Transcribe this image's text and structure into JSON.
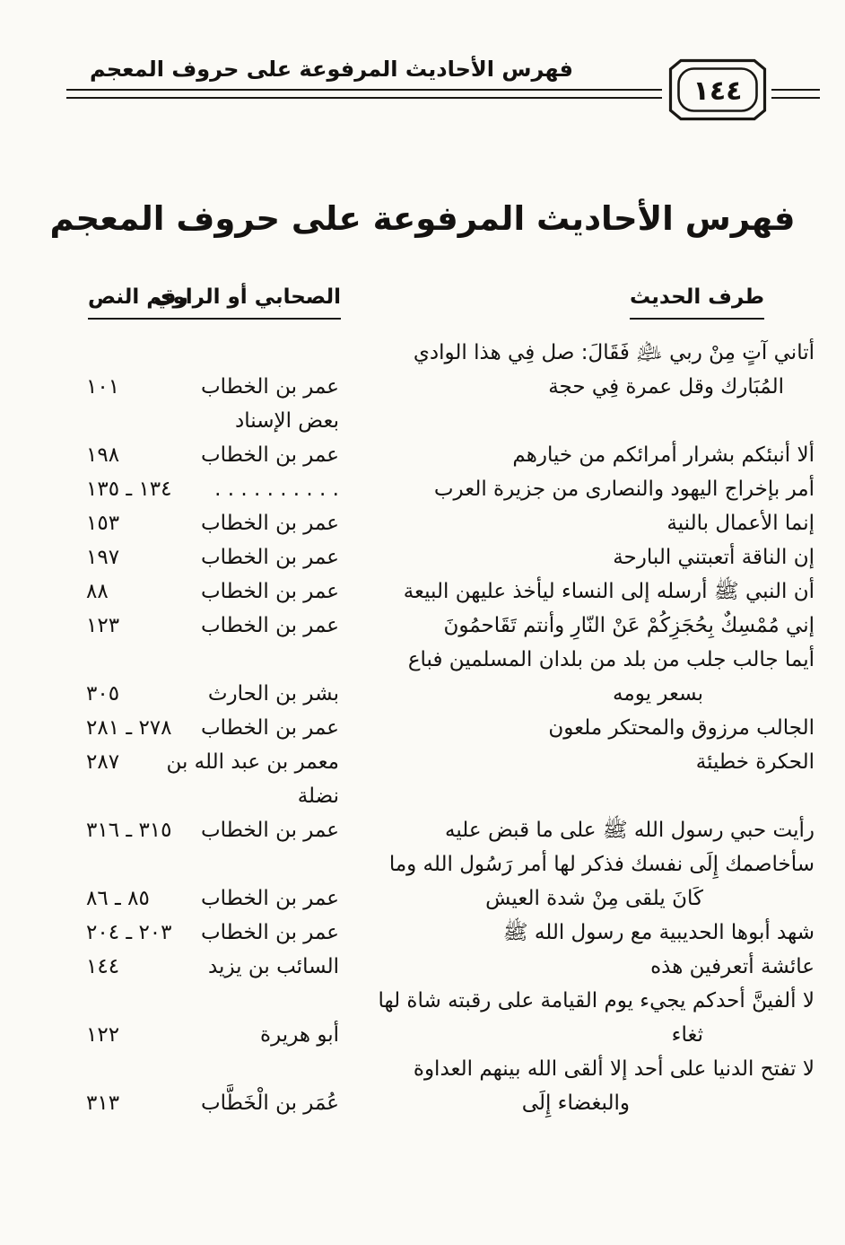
{
  "colors": {
    "paper": "#fbfaf6",
    "ink": "#141210"
  },
  "header": {
    "running_title": "فهرس الأحاديث المرفوعة على حروف المعجم",
    "page_number": "١٤٤"
  },
  "title": "فهرس الأحاديث المرفوعة على حروف المعجم",
  "columns": {
    "hadith": "طرف الحديث",
    "narrator": "الصحابي أو الراوي",
    "number": "رقم النص"
  },
  "rows": [
    {
      "hadith": "أتاني آتٍ مِنْ ربي ﵇ فَقَالَ: صل فِي هذا الوادي",
      "narrator": "",
      "number": "",
      "indent": ""
    },
    {
      "hadith": "المُبَارك وقل عمرة فِي حجة",
      "narrator": "عمر بن الخطاب",
      "number": "١٠١",
      "indent": "sm"
    },
    {
      "hadith": "",
      "narrator": "بعض الإسناد",
      "number": "",
      "indent": ""
    },
    {
      "hadith": "ألا أنبئكم بشرار أمرائكم من خيارهم",
      "narrator": "عمر بن الخطاب",
      "number": "١٩٨",
      "indent": ""
    },
    {
      "hadith": "أمر بإخراج اليهود والنصارى من جزيرة العرب",
      "narrator": ". . . . . . . . . .",
      "number": "١٣٤ ـ ١٣٥",
      "indent": ""
    },
    {
      "hadith": "إنما الأعمال بالنية",
      "narrator": "عمر بن الخطاب",
      "number": "١٥٣",
      "indent": ""
    },
    {
      "hadith": "إن الناقة أتعبتني البارحة",
      "narrator": "عمر بن الخطاب",
      "number": "١٩٧",
      "indent": ""
    },
    {
      "hadith": "أن النبي ﷺ أرسله إلى النساء ليأخذ عليهن البيعة",
      "narrator": "عمر بن الخطاب",
      "number": "٨٨",
      "indent": ""
    },
    {
      "hadith": "إني مُمْسِكٌ بِحُجَزِكُمْ عَنْ النّارِ وأنتم تَقَاحمُونَ",
      "narrator": "عمر بن الخطاب",
      "number": "١٢٣",
      "indent": ""
    },
    {
      "hadith": "أيما جالب جلب من بلد من بلدان المسلمين فباع",
      "narrator": "",
      "number": "",
      "indent": ""
    },
    {
      "hadith": "بسعر يومه",
      "narrator": "بشر بن الحارث",
      "number": "٣٠٥",
      "indent": "md"
    },
    {
      "hadith": "الجالب مرزوق والمحتكر ملعون",
      "narrator": "عمر بن الخطاب",
      "number": "٢٧٨ ـ ٢٨١",
      "indent": ""
    },
    {
      "hadith": "الحكرة خطيئة",
      "narrator": "معمر بن عبد الله بن",
      "number": "٢٨٧",
      "indent": ""
    },
    {
      "hadith": "",
      "narrator": "نضلة",
      "number": "",
      "indent": ""
    },
    {
      "hadith": "رأيت حبي رسول الله ﷺ على ما قبض عليه",
      "narrator": "عمر بن الخطاب",
      "number": "٣١٥ ـ ٣١٦",
      "indent": ""
    },
    {
      "hadith": "سأخاصمك إِلَى نفسك فذكر لها أمر رَسُول الله وما",
      "narrator": "",
      "number": "",
      "indent": ""
    },
    {
      "hadith": "كَانَ يلقى مِنْ شدة العيش",
      "narrator": "عمر بن الخطاب",
      "number": "٨٥ ـ ٨٦",
      "indent": "md"
    },
    {
      "hadith": "شهد أبوها الحديبية مع رسول الله ﷺ",
      "narrator": "عمر بن الخطاب",
      "number": "٢٠٣ ـ ٢٠٤",
      "indent": ""
    },
    {
      "hadith": "عائشة أتعرفين هذه",
      "narrator": "السائب بن يزيد",
      "number": "١٤٤",
      "indent": ""
    },
    {
      "hadith": "لا ألفينَّ أحدكم يجيء يوم القيامة على رقبته شاة لها",
      "narrator": "",
      "number": "",
      "indent": ""
    },
    {
      "hadith": "ثغاء",
      "narrator": "أبو هريرة",
      "number": "١٢٢",
      "indent": "md"
    },
    {
      "hadith": "لا تفتح الدنيا على أحد إلا ألقى الله بينهم العداوة",
      "narrator": "",
      "number": "",
      "indent": ""
    },
    {
      "hadith": "والبغضاء إِلَى",
      "narrator": "عُمَر بن الْخَطَّاب",
      "number": "٣١٣",
      "indent": "lg"
    }
  ]
}
